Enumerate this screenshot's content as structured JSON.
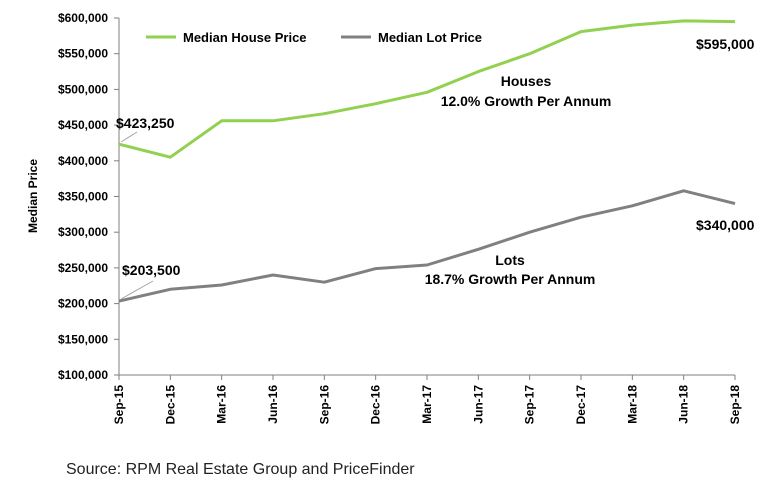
{
  "chart_data": {
    "type": "line",
    "categories": [
      "Sep-15",
      "Dec-15",
      "Mar-16",
      "Jun-16",
      "Sep-16",
      "Dec-16",
      "Mar-17",
      "Jun-17",
      "Sep-17",
      "Dec-17",
      "Mar-18",
      "Jun-18",
      "Sep-18"
    ],
    "series": [
      {
        "name": "Median House Price",
        "color": "#92d050",
        "values": [
          423250,
          405000,
          456000,
          456000,
          466000,
          480000,
          496000,
          525000,
          550000,
          581000,
          590000,
          596000,
          595000
        ]
      },
      {
        "name": "Median Lot Price",
        "color": "#808080",
        "values": [
          203500,
          220000,
          226000,
          240000,
          230000,
          249000,
          254000,
          276000,
          300000,
          321000,
          337000,
          358000,
          340000
        ]
      }
    ],
    "ylabel": "Median Price",
    "ylim": [
      100000,
      600000
    ],
    "yticks": [
      "$100,000",
      "$150,000",
      "$200,000",
      "$250,000",
      "$300,000",
      "$350,000",
      "$400,000",
      "$450,000",
      "$500,000",
      "$550,000",
      "$600,000"
    ],
    "legend_position": "top",
    "grid": false,
    "data_labels": {
      "house_start": "$423,250",
      "house_end": "$595,000",
      "lot_start": "$203,500",
      "lot_end": "$340,000"
    },
    "annotations": {
      "houses_title": "Houses",
      "houses_growth": "12.0% Growth Per Annum",
      "lots_title": "Lots",
      "lots_growth": "18.7% Growth Per Annum"
    }
  },
  "source": "Source: RPM Real Estate Group and PriceFinder"
}
